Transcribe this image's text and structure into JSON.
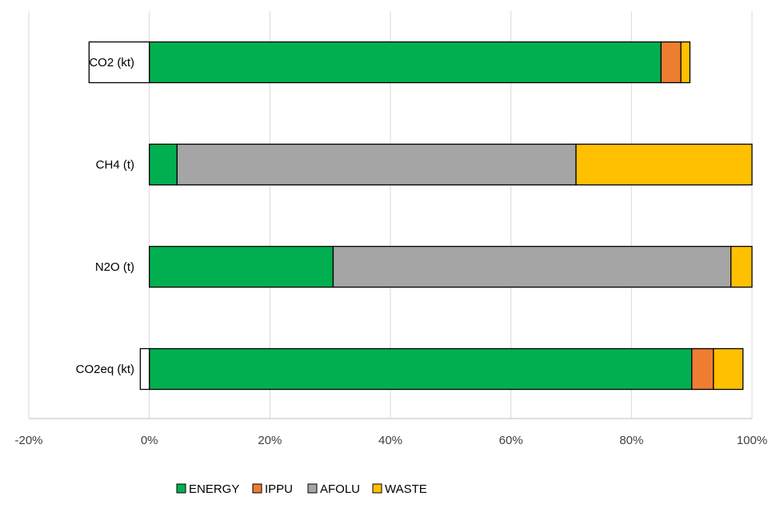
{
  "chart_data": {
    "type": "bar",
    "orientation": "horizontal",
    "stacked": true,
    "categories": [
      "CO2 (kt)",
      "CH4 (t)",
      "N2O (t)",
      "CO2eq (kt)"
    ],
    "series": [
      {
        "name": "ENERGY",
        "color": "#00b050",
        "values": [
          84.9,
          4.6,
          30.5,
          90.0
        ]
      },
      {
        "name": "IPPU",
        "color": "#ed7d31",
        "values": [
          3.3,
          0.0,
          0.0,
          3.6
        ]
      },
      {
        "name": "AFOLU",
        "color": "#a5a5a5",
        "values": [
          -10.0,
          66.2,
          66.0,
          -1.5
        ]
      },
      {
        "name": "WASTE",
        "color": "#ffc000",
        "values": [
          1.5,
          29.2,
          3.5,
          4.9
        ]
      }
    ],
    "xlim": [
      -20,
      100
    ],
    "xticks": [
      "-20%",
      "0%",
      "20%",
      "40%",
      "60%",
      "80%",
      "100%"
    ],
    "grid": "vertical",
    "legend_position": "bottom",
    "title": "",
    "xlabel": "",
    "ylabel": ""
  }
}
